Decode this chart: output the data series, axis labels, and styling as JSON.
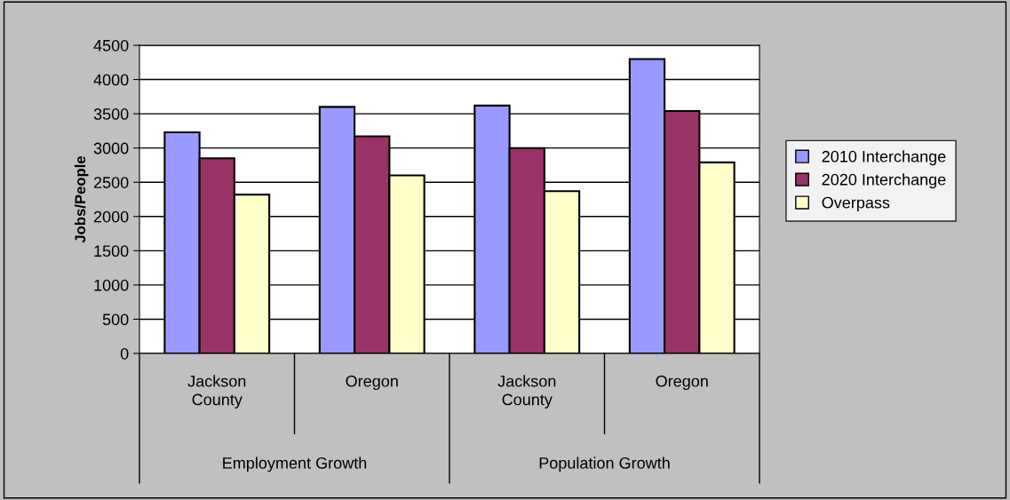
{
  "chart_data": {
    "type": "bar",
    "ylabel": "Jobs/People",
    "categories": [
      "Jackson\nCounty",
      "Oregon",
      "Jackson\nCounty",
      "Oregon"
    ],
    "annotations": [
      "Employment Growth",
      "Population Growth"
    ],
    "series": [
      {
        "name": "2010 Interchange",
        "color": "#9999ff",
        "values": [
          3230,
          3600,
          3620,
          4300
        ]
      },
      {
        "name": "2020 Interchange",
        "color": "#993366",
        "values": [
          2850,
          3170,
          3000,
          3540
        ]
      },
      {
        "name": "Overpass",
        "color": "#ffffcc",
        "values": [
          2320,
          2600,
          2370,
          2790
        ]
      }
    ],
    "ylim": [
      0,
      4500
    ],
    "yticks": [
      0,
      500,
      1000,
      1500,
      2000,
      2500,
      3000,
      3500,
      4000,
      4500
    ],
    "grid": "y",
    "legend": "right"
  }
}
